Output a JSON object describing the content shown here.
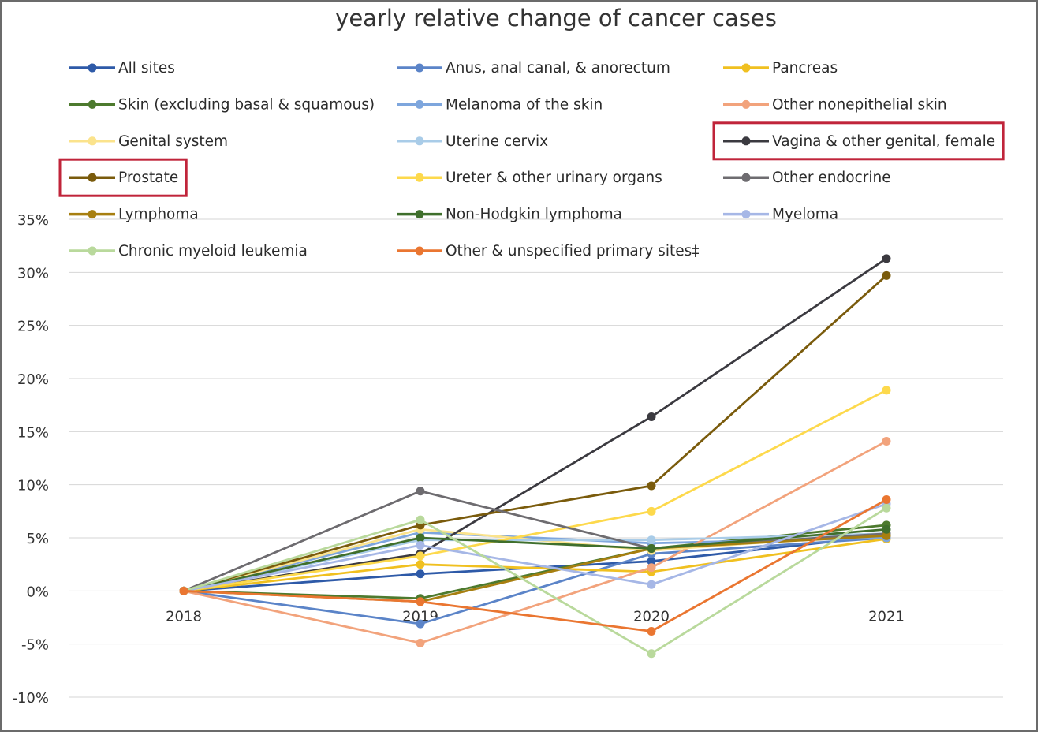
{
  "chart_data": {
    "type": "line",
    "title": "yearly relative change of cancer cases",
    "xlabel": "",
    "ylabel": "",
    "categories": [
      "2018",
      "2019",
      "2020",
      "2021"
    ],
    "ylim": [
      -10,
      35
    ],
    "yticks": [
      35,
      30,
      25,
      20,
      15,
      10,
      5,
      0,
      -5,
      -10
    ],
    "ytick_labels": [
      "35%",
      "30%",
      "25%",
      "20%",
      "15%",
      "10%",
      "5%",
      "0%",
      "-5%",
      "-10%"
    ],
    "grid": true,
    "legend_position": "top",
    "series": [
      {
        "name": "All sites",
        "color": "#2e5aa8",
        "values": [
          0,
          1.6,
          2.8,
          5.2
        ]
      },
      {
        "name": "Anus, anal canal, & anorectum",
        "color": "#5b84c8",
        "values": [
          0,
          -3.1,
          3.5,
          5.0
        ]
      },
      {
        "name": "Pancreas",
        "color": "#f0c020",
        "values": [
          0,
          2.5,
          1.8,
          4.9
        ]
      },
      {
        "name": "Skin (excluding basal & squamous)",
        "color": "#4d7a2e",
        "values": [
          0,
          -0.7,
          4.0,
          6.2
        ]
      },
      {
        "name": "Melanoma of the skin",
        "color": "#7ea6dd",
        "values": [
          0,
          5.5,
          4.5,
          5.0
        ]
      },
      {
        "name": "Other nonepithelial skin",
        "color": "#f2a37c",
        "values": [
          0,
          -4.9,
          2.2,
          14.1
        ]
      },
      {
        "name": "Genital system",
        "color": "#fbe38c",
        "values": [
          0,
          5.8,
          3.8,
          5.4
        ]
      },
      {
        "name": "Uterine cervix",
        "color": "#a9cce8",
        "values": [
          0,
          4.8,
          4.8,
          5.4
        ]
      },
      {
        "name": "Vagina & other genital, female",
        "color": "#3b3a40",
        "values": [
          0,
          3.5,
          16.4,
          31.3
        ]
      },
      {
        "name": "Prostate",
        "color": "#7a5b0c",
        "values": [
          0,
          6.2,
          9.9,
          29.7
        ]
      },
      {
        "name": "Ureter & other urinary organs",
        "color": "#fdd94c",
        "values": [
          0,
          3.3,
          7.5,
          18.9
        ]
      },
      {
        "name": "Other endocrine",
        "color": "#6e6c70",
        "values": [
          0,
          9.4,
          4.0,
          5.4
        ]
      },
      {
        "name": "Lymphoma",
        "color": "#a77f10",
        "values": [
          0,
          -1.0,
          4.0,
          5.2
        ]
      },
      {
        "name": "Non-Hodgkin lymphoma",
        "color": "#3f6f2c",
        "values": [
          0,
          5.0,
          4.0,
          5.8
        ]
      },
      {
        "name": "Myeloma",
        "color": "#a6b7e6",
        "values": [
          0,
          4.3,
          0.6,
          8.2
        ]
      },
      {
        "name": "Chronic myeloid leukemia",
        "color": "#b9d99c",
        "values": [
          0,
          6.7,
          -5.9,
          7.8
        ]
      },
      {
        "name": "Other & unspecified primary sites‡",
        "color": "#ea7631",
        "values": [
          0,
          -1.0,
          -3.8,
          8.6
        ]
      }
    ],
    "highlighted": [
      "Vagina & other genital, female",
      "Prostate"
    ],
    "highlight_color": "#c0243a"
  }
}
